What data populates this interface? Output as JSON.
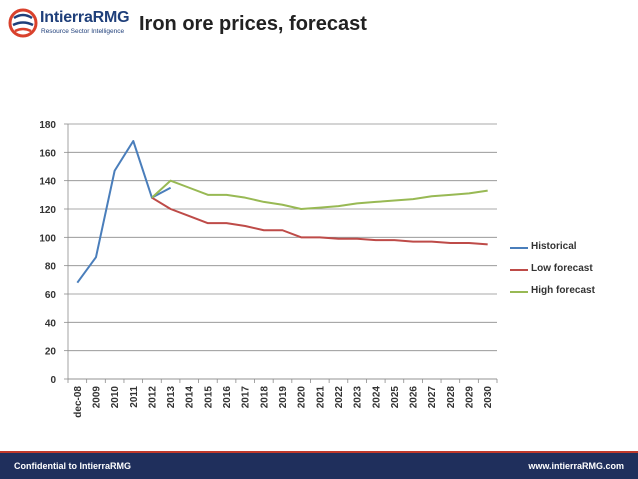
{
  "header": {
    "logo_text": "IntierraRMG",
    "logo_tagline": "Resource Sector Intelligence",
    "title": "Iron ore prices, forecast"
  },
  "footer": {
    "left": "Confidential to IntierraRMG",
    "right": "www.intierraRMG.com"
  },
  "colors": {
    "historical": "#4a7ebb",
    "low_forecast": "#be4b48",
    "high_forecast": "#98b954",
    "footer_bg": "#1f2f5c",
    "logo_blue": "#1f3f7a",
    "logo_red": "#d9412c"
  },
  "chart_data": {
    "type": "line",
    "title": "",
    "xlabel": "",
    "ylabel": "",
    "categories": [
      "dec-08",
      "2009",
      "2010",
      "2011",
      "2012",
      "2013",
      "2014",
      "2015",
      "2016",
      "2017",
      "2018",
      "2019",
      "2020",
      "2021",
      "2022",
      "2023",
      "2024",
      "2025",
      "2026",
      "2027",
      "2028",
      "2029",
      "2030"
    ],
    "ylim": [
      0,
      180
    ],
    "yticks": [
      0,
      20,
      40,
      60,
      80,
      100,
      120,
      140,
      160,
      180
    ],
    "grid": true,
    "legend_position": "right",
    "series": [
      {
        "name": "Historical",
        "color": "#4a7ebb",
        "values": [
          68,
          86,
          147,
          168,
          128,
          135,
          null,
          null,
          null,
          null,
          null,
          null,
          null,
          null,
          null,
          null,
          null,
          null,
          null,
          null,
          null,
          null,
          null
        ]
      },
      {
        "name": "Low forecast",
        "color": "#be4b48",
        "values": [
          null,
          null,
          null,
          null,
          128,
          120,
          115,
          110,
          110,
          108,
          105,
          105,
          100,
          100,
          99,
          99,
          98,
          98,
          97,
          97,
          96,
          96,
          95
        ]
      },
      {
        "name": "High forecast",
        "color": "#98b954",
        "values": [
          null,
          null,
          null,
          null,
          128,
          140,
          135,
          130,
          130,
          128,
          125,
          123,
          120,
          121,
          122,
          124,
          125,
          126,
          127,
          129,
          130,
          131,
          133
        ]
      }
    ]
  }
}
